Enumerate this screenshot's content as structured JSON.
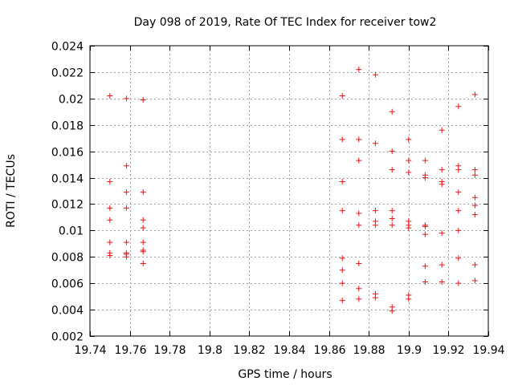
{
  "chart_data": {
    "type": "scatter",
    "title": "Day 098 of 2019, Rate Of TEC Index for receiver tow2",
    "xlabel": "GPS time / hours",
    "ylabel": "ROTI / TECUs",
    "xlim": [
      19.74,
      19.94
    ],
    "ylim": [
      0.002,
      0.024
    ],
    "grid": true,
    "marker": "plus",
    "colors": {
      "points": "#e41a1c",
      "grid": "#a0a0a0",
      "axis": "#000000"
    },
    "xticks": [
      19.74,
      19.76,
      19.78,
      19.8,
      19.82,
      19.84,
      19.86,
      19.88,
      19.9,
      19.92,
      19.94
    ],
    "xtick_labels": [
      "19.74",
      "19.76",
      "19.78",
      "19.8",
      "19.82",
      "19.84",
      "19.86",
      "19.88",
      "19.9",
      "19.92",
      "19.94"
    ],
    "yticks": [
      0.002,
      0.004,
      0.006,
      0.008,
      0.01,
      0.012,
      0.014,
      0.016,
      0.018,
      0.02,
      0.022,
      0.024
    ],
    "ytick_labels": [
      "0.002",
      "0.004",
      "0.006",
      "0.008",
      "0.01",
      "0.012",
      "0.014",
      "0.016",
      "0.018",
      "0.02",
      "0.022",
      "0.024"
    ],
    "points": [
      [
        19.75,
        0.0202
      ],
      [
        19.75,
        0.0137
      ],
      [
        19.75,
        0.0117
      ],
      [
        19.75,
        0.0108
      ],
      [
        19.75,
        0.0091
      ],
      [
        19.75,
        0.0083
      ],
      [
        19.75,
        0.0081
      ],
      [
        19.7583,
        0.02
      ],
      [
        19.7583,
        0.0149
      ],
      [
        19.7583,
        0.0129
      ],
      [
        19.7583,
        0.0117
      ],
      [
        19.7583,
        0.0091
      ],
      [
        19.7583,
        0.0083
      ],
      [
        19.7583,
        0.0082
      ],
      [
        19.7583,
        0.008
      ],
      [
        19.7667,
        0.0199
      ],
      [
        19.7667,
        0.0129
      ],
      [
        19.7667,
        0.0108
      ],
      [
        19.7667,
        0.0102
      ],
      [
        19.7667,
        0.0091
      ],
      [
        19.7667,
        0.0085
      ],
      [
        19.7667,
        0.0084
      ],
      [
        19.7667,
        0.0075
      ],
      [
        19.8667,
        0.0202
      ],
      [
        19.8667,
        0.0169
      ],
      [
        19.8667,
        0.0137
      ],
      [
        19.8667,
        0.0115
      ],
      [
        19.8667,
        0.0079
      ],
      [
        19.8667,
        0.007
      ],
      [
        19.8667,
        0.006
      ],
      [
        19.8667,
        0.0047
      ],
      [
        19.875,
        0.0222
      ],
      [
        19.875,
        0.0169
      ],
      [
        19.875,
        0.0153
      ],
      [
        19.875,
        0.0113
      ],
      [
        19.875,
        0.0104
      ],
      [
        19.875,
        0.0075
      ],
      [
        19.875,
        0.0056
      ],
      [
        19.875,
        0.0048
      ],
      [
        19.8833,
        0.0218
      ],
      [
        19.8833,
        0.0166
      ],
      [
        19.8833,
        0.0115
      ],
      [
        19.8833,
        0.0107
      ],
      [
        19.8833,
        0.0104
      ],
      [
        19.8833,
        0.0052
      ],
      [
        19.8833,
        0.0049
      ],
      [
        19.8917,
        0.019
      ],
      [
        19.8917,
        0.016
      ],
      [
        19.8917,
        0.0146
      ],
      [
        19.8917,
        0.0115
      ],
      [
        19.8917,
        0.0109
      ],
      [
        19.8917,
        0.0104
      ],
      [
        19.8917,
        0.0042
      ],
      [
        19.8917,
        0.0039
      ],
      [
        19.9,
        0.0169
      ],
      [
        19.9,
        0.0153
      ],
      [
        19.9,
        0.0144
      ],
      [
        19.9,
        0.0107
      ],
      [
        19.9,
        0.0104
      ],
      [
        19.9,
        0.0102
      ],
      [
        19.9,
        0.0051
      ],
      [
        19.9,
        0.0048
      ],
      [
        19.9083,
        0.0153
      ],
      [
        19.9083,
        0.0142
      ],
      [
        19.9083,
        0.014
      ],
      [
        19.9083,
        0.0104
      ],
      [
        19.9083,
        0.0103
      ],
      [
        19.9083,
        0.0097
      ],
      [
        19.9083,
        0.0073
      ],
      [
        19.9083,
        0.0061
      ],
      [
        19.9167,
        0.0176
      ],
      [
        19.9167,
        0.0146
      ],
      [
        19.9167,
        0.0137
      ],
      [
        19.9167,
        0.0135
      ],
      [
        19.9167,
        0.0098
      ],
      [
        19.9167,
        0.0074
      ],
      [
        19.9167,
        0.0061
      ],
      [
        19.925,
        0.0194
      ],
      [
        19.925,
        0.0149
      ],
      [
        19.925,
        0.0146
      ],
      [
        19.925,
        0.0129
      ],
      [
        19.925,
        0.0115
      ],
      [
        19.925,
        0.01
      ],
      [
        19.925,
        0.0079
      ],
      [
        19.925,
        0.006
      ],
      [
        19.9333,
        0.0203
      ],
      [
        19.9333,
        0.0146
      ],
      [
        19.9333,
        0.0142
      ],
      [
        19.9333,
        0.0125
      ],
      [
        19.9333,
        0.0119
      ],
      [
        19.9333,
        0.0112
      ],
      [
        19.9333,
        0.0074
      ],
      [
        19.9333,
        0.0062
      ]
    ]
  }
}
